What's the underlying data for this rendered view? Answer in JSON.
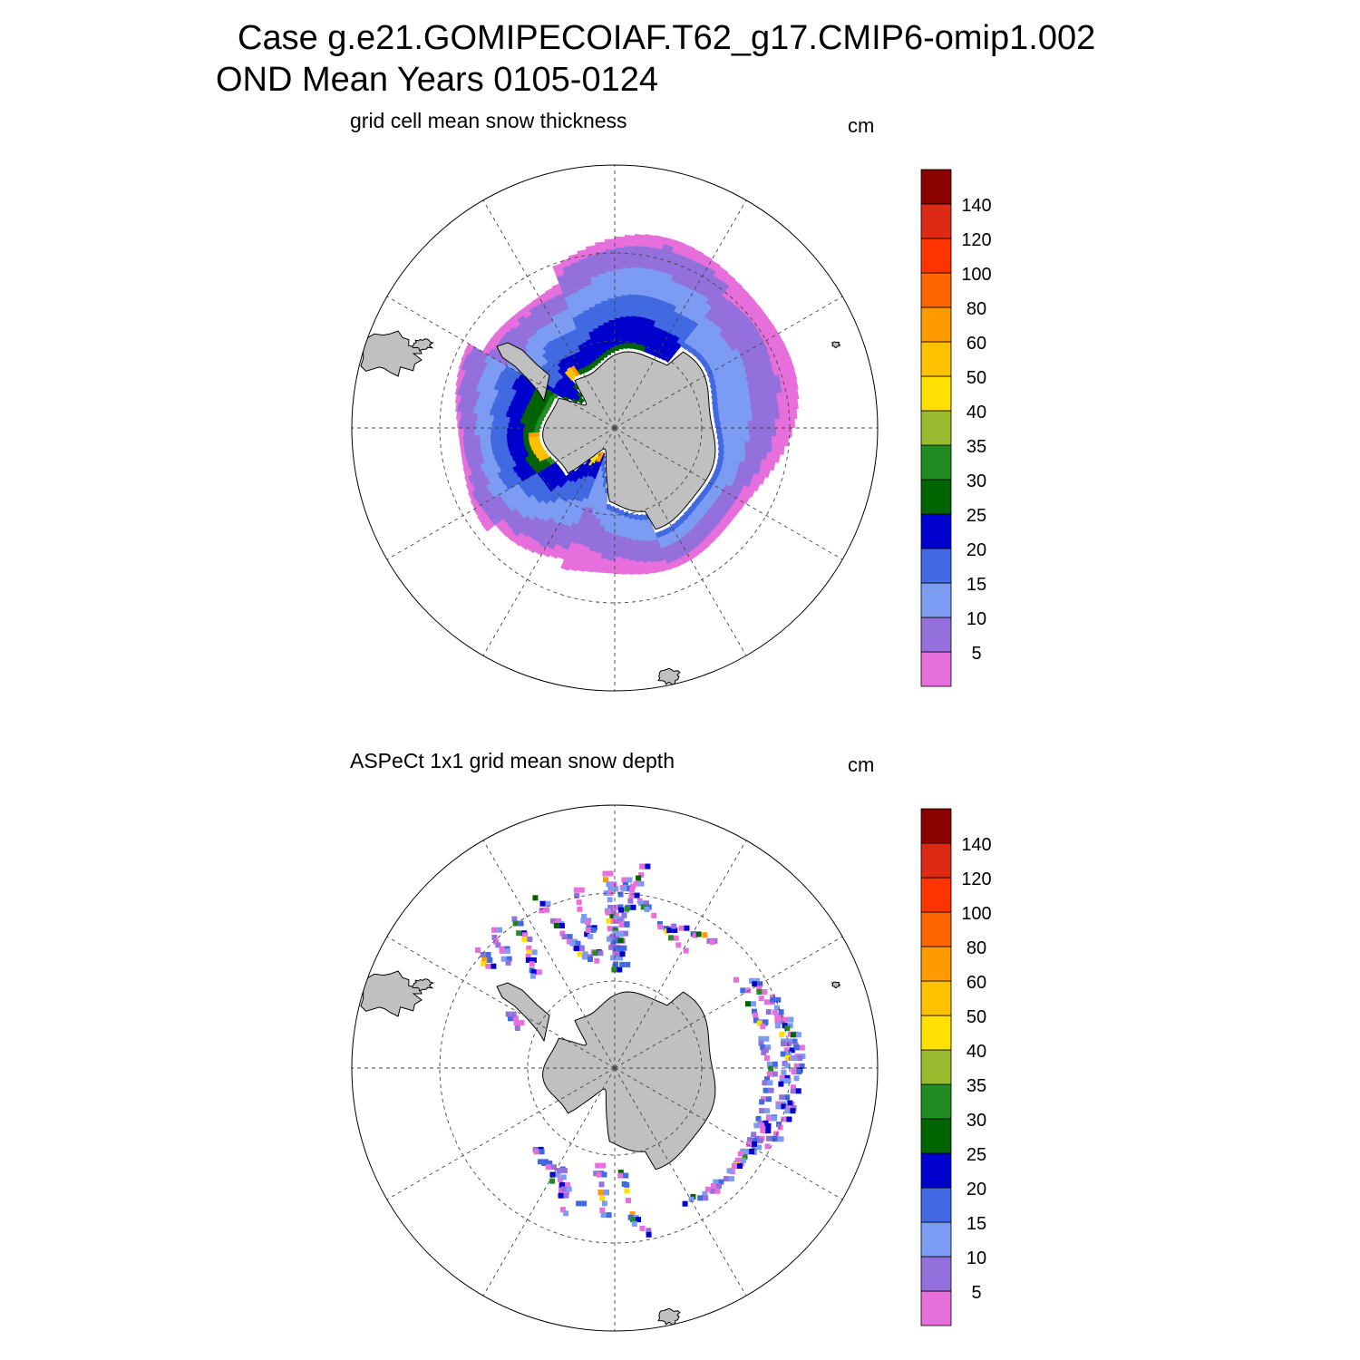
{
  "title": {
    "line1": "Case g.e21.GOMIPECOIAF.T62_g17.CMIP6-omip1.002",
    "line2": "OND Mean   Years 0105-0124"
  },
  "panels": [
    {
      "title": "grid cell mean snow thickness",
      "units": "cm",
      "style": "model-field"
    },
    {
      "title": "ASPeCt 1x1 grid mean snow depth",
      "units": "cm",
      "style": "ship-observations"
    }
  ],
  "colorbar": {
    "levels": [
      "5",
      "10",
      "15",
      "20",
      "25",
      "30",
      "35",
      "40",
      "50",
      "60",
      "80",
      "100",
      "120",
      "140"
    ],
    "colors": [
      "#e76fdc",
      "#9370db",
      "#7b9cf2",
      "#4169e1",
      "#0000cd",
      "#006400",
      "#228b22",
      "#9aba30",
      "#ffe000",
      "#ffc000",
      "#ff9a00",
      "#ff6600",
      "#ff3300",
      "#dd2a15",
      "#8b0000"
    ]
  },
  "map_colors": {
    "land": "#c0c0c0",
    "grid": "#444444"
  }
}
